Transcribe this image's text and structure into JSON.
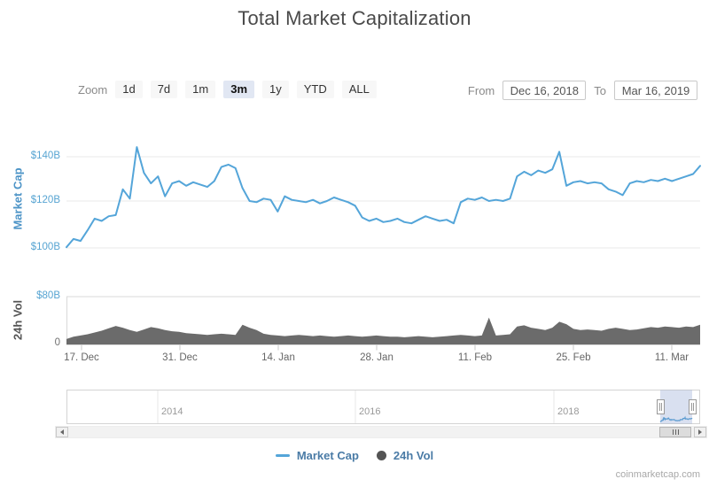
{
  "title": "Total Market Capitalization",
  "range_selector": {
    "zoom_label": "Zoom",
    "buttons": [
      {
        "label": "1d",
        "selected": false
      },
      {
        "label": "7d",
        "selected": false
      },
      {
        "label": "1m",
        "selected": false
      },
      {
        "label": "3m",
        "selected": true
      },
      {
        "label": "1y",
        "selected": false
      },
      {
        "label": "YTD",
        "selected": false
      },
      {
        "label": "ALL",
        "selected": false
      }
    ],
    "from_label": "From",
    "from_value": "Dec 16, 2018",
    "to_label": "To",
    "to_value": "Mar 16, 2019"
  },
  "market_cap_axis": {
    "title": "Market Cap",
    "labels": [
      "$140B",
      "$120B",
      "$100B"
    ]
  },
  "volume_axis": {
    "title": "24h Vol",
    "labels": [
      "$80B",
      "0"
    ]
  },
  "xaxis_labels": [
    "17. Dec",
    "31. Dec",
    "14. Jan",
    "28. Jan",
    "11. Feb",
    "25. Feb",
    "11. Mar"
  ],
  "navigator_years": [
    "2014",
    "2016",
    "2018"
  ],
  "legend": [
    {
      "marker": "line",
      "label": "Market Cap"
    },
    {
      "marker": "circle",
      "label": "24h Vol"
    }
  ],
  "watermark": "coinmarketcap.com",
  "colors": {
    "market_cap_line": "#54a5d9",
    "volume_area": "#6b6b6b",
    "axis_label_blue": "#57a4d2",
    "axis_title_blue": "#4d94c7",
    "legend_text": "#4a7ba6",
    "selected_button_bg": "#e1e7f3",
    "navigator_mask": "#6685c2"
  },
  "chart_data": [
    {
      "type": "line",
      "name": "Market Cap",
      "unit": "USD billions",
      "x_start": "Dec 16, 2018",
      "x_end": "Mar 16, 2019",
      "interval": "daily",
      "ylabel": "Market Cap",
      "ylim": [
        95,
        150
      ],
      "yticks": [
        "$100B",
        "$120B",
        "$140B"
      ],
      "grid": true,
      "values": [
        100.3,
        103.8,
        103.0,
        107.5,
        112.5,
        111.5,
        113.5,
        114.0,
        125.0,
        121.0,
        143.0,
        132.0,
        127.5,
        130.5,
        122.0,
        127.5,
        128.5,
        126.5,
        128.0,
        127.0,
        126.0,
        128.5,
        134.5,
        135.5,
        134.0,
        125.5,
        120.0,
        119.5,
        121.0,
        120.5,
        115.5,
        122.0,
        120.5,
        120.0,
        119.5,
        120.5,
        119.0,
        120.0,
        121.5,
        120.5,
        119.5,
        118.0,
        113.0,
        111.5,
        112.5,
        111.0,
        111.5,
        112.5,
        111.0,
        110.5,
        112.0,
        113.5,
        112.5,
        111.5,
        112.0,
        110.5,
        119.5,
        121.0,
        120.5,
        121.5,
        120.0,
        120.5,
        120.0,
        121.0,
        130.5,
        132.5,
        131.0,
        133.0,
        132.0,
        133.5,
        141.0,
        126.5,
        128.0,
        128.5,
        127.5,
        128.0,
        127.5,
        125.0,
        124.0,
        122.5,
        127.5,
        128.5,
        128.0,
        129.0,
        128.5,
        129.5,
        128.5,
        129.5,
        130.5,
        131.5,
        135.0
      ]
    },
    {
      "type": "area",
      "name": "24h Vol",
      "unit": "USD billions",
      "x_start": "Dec 16, 2018",
      "x_end": "Mar 16, 2019",
      "interval": "daily",
      "ylabel": "24h Vol",
      "ylim": [
        0,
        80
      ],
      "yticks": [
        "0",
        "$80B"
      ],
      "grid": false,
      "values": [
        9,
        13,
        15,
        17,
        20,
        23,
        27,
        31,
        28,
        24,
        21,
        25,
        29,
        27,
        24,
        22,
        21,
        19,
        18,
        17,
        16,
        17,
        18,
        17,
        16,
        33,
        28,
        24,
        18,
        16,
        15,
        14,
        15,
        16,
        15,
        14,
        15,
        14,
        13,
        14,
        15,
        14,
        13,
        14,
        15,
        14,
        13,
        13,
        12,
        13,
        14,
        13,
        12,
        13,
        14,
        15,
        16,
        15,
        14,
        15,
        45,
        15,
        16,
        17,
        30,
        32,
        28,
        26,
        24,
        28,
        38,
        34,
        26,
        24,
        25,
        24,
        23,
        26,
        28,
        26,
        24,
        25,
        27,
        29,
        28,
        30,
        29,
        28,
        30,
        29,
        33
      ]
    }
  ]
}
